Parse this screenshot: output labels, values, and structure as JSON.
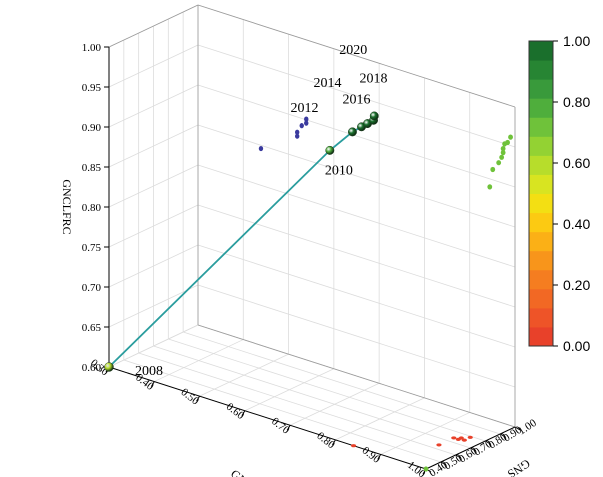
{
  "chart_data": {
    "type": "scatter",
    "title": "",
    "axes": {
      "x": {
        "label": "GNE",
        "ticks": [
          "0.30",
          "0.40",
          "0.50",
          "0.60",
          "0.70",
          "0.80",
          "0.90",
          "1.00"
        ],
        "range": [
          0.3,
          1.0
        ]
      },
      "y": {
        "label": "GNS",
        "ticks": [
          "0.40",
          "0.50",
          "0.60",
          "0.70",
          "0.80",
          "0.90",
          "1.00"
        ],
        "range": [
          0.4,
          1.0
        ]
      },
      "z": {
        "label": "GNCLFRC",
        "ticks": [
          "0.60",
          "0.65",
          "0.70",
          "0.75",
          "0.80",
          "0.85",
          "0.90",
          "0.95",
          "1.00"
        ],
        "range": [
          0.6,
          1.0
        ]
      }
    },
    "colorbar": {
      "ticks": [
        "0.00",
        "0.20",
        "0.40",
        "0.60",
        "0.80",
        "1.00"
      ],
      "colors": [
        "#e8412a",
        "#ee5428",
        "#f26824",
        "#f57d20",
        "#f8951b",
        "#fbb016",
        "#fcca12",
        "#f3df13",
        "#d8e421",
        "#b7dd2b",
        "#93d233",
        "#6fc23a",
        "#4fae3c",
        "#399a3b",
        "#278533",
        "#1a6f2c"
      ]
    },
    "trajectory": [
      {
        "year": "2008",
        "gne": 0.3,
        "gns": 0.4,
        "z": 0.6,
        "c": 0.6
      },
      {
        "year": "2010",
        "gne": 0.655,
        "gns": 0.805,
        "z": 0.9,
        "c": 0.78
      },
      {
        "year": "2012",
        "gne": 0.7,
        "gns": 0.82,
        "z": 0.93,
        "c": 0.95
      },
      {
        "year": "2014",
        "gne": 0.72,
        "gns": 0.82,
        "z": 0.94,
        "c": 1.0
      },
      {
        "year": "2016",
        "gne": 0.73,
        "gns": 0.83,
        "z": 0.945,
        "c": 1.0
      },
      {
        "year": "2018",
        "gne": 0.74,
        "gns": 0.84,
        "z": 0.95,
        "c": 1.0
      },
      {
        "year": "2020",
        "gne": 0.74,
        "gns": 0.845,
        "z": 0.955,
        "c": 1.0
      }
    ],
    "year_labels": [
      "2008",
      "2010",
      "2012",
      "2014",
      "2016",
      "2018",
      "2020"
    ],
    "projection_gne_gnclfrc": [
      {
        "gne": 0.3,
        "z": 0.6
      },
      {
        "gne": 0.64,
        "z": 0.935
      },
      {
        "gne": 0.72,
        "z": 0.965
      },
      {
        "gne": 0.72,
        "z": 0.97
      },
      {
        "gne": 0.73,
        "z": 0.98
      },
      {
        "gne": 0.74,
        "z": 0.985
      },
      {
        "gne": 0.74,
        "z": 0.99
      }
    ],
    "projection_gne_gns": [
      {
        "gne": 0.84,
        "gns": 0.4
      },
      {
        "gne": 0.95,
        "gns": 0.64
      },
      {
        "gne": 0.95,
        "gns": 0.74
      },
      {
        "gne": 0.96,
        "gns": 0.74
      },
      {
        "gne": 0.96,
        "gns": 0.76
      },
      {
        "gne": 0.97,
        "gns": 0.75
      },
      {
        "gne": 0.97,
        "gns": 0.79
      }
    ],
    "projection_gns_gnclfrc": [
      {
        "gns": 0.4,
        "z": 0.6
      },
      {
        "gns": 0.83,
        "z": 0.915
      },
      {
        "gns": 0.85,
        "z": 0.935
      },
      {
        "gns": 0.89,
        "z": 0.94
      },
      {
        "gns": 0.91,
        "z": 0.945
      },
      {
        "gns": 0.92,
        "z": 0.95
      },
      {
        "gns": 0.92,
        "z": 0.955
      },
      {
        "gns": 0.93,
        "z": 0.96
      },
      {
        "gns": 0.95,
        "z": 0.96
      },
      {
        "gns": 0.97,
        "z": 0.965
      }
    ],
    "colors": {
      "line": "#2a9d9e",
      "projection_back": "#3a3a9e",
      "projection_floor": "#e8412a",
      "projection_side": "#6fc23a"
    }
  }
}
